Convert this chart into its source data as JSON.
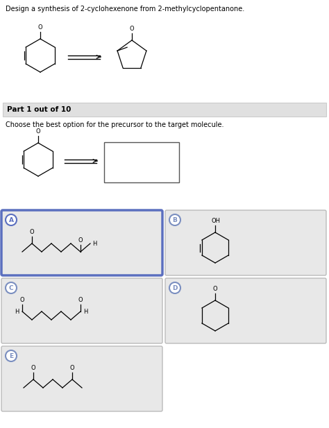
{
  "title_text": "Design a synthesis of 2-cyclohexenone from 2-methylcyclopentanone.",
  "part_text": "Part 1 out of 10",
  "choose_text": "Choose the best option for the precursor to the target molecule.",
  "bg_color": "#ffffff",
  "panel_bg": "#e8e8e8",
  "selected_border": "#5b6fbf",
  "label_A": "A",
  "label_B": "B",
  "label_C": "C",
  "label_D": "D",
  "label_E": "E",
  "label_circle_color": "#7b8fc0",
  "fig_w": 4.74,
  "fig_h": 6.17,
  "dpi": 100
}
